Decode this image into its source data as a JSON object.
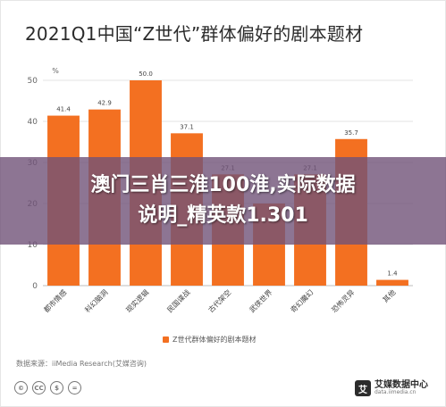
{
  "chart_data": {
    "type": "bar",
    "title": "2021Q1中国“Z世代”群体偏好的剧本题材",
    "unit": "%",
    "categories": [
      "都市情感",
      "科幻脑洞",
      "现实逻辑",
      "民国谍战",
      "古代架空",
      "武侠世界",
      "奇幻魔幻",
      "恐怖灵异",
      "其他"
    ],
    "series": [
      {
        "name": "Z世代群体偏好的剧本题材",
        "values": [
          41.4,
          42.9,
          50.0,
          37.1,
          27.1,
          20.0,
          27.1,
          35.7,
          1.4
        ],
        "value_labels": [
          "41.4",
          "42.9",
          "50.0",
          "37.1",
          "27.1",
          "",
          "27.1",
          "35.7",
          "1.4"
        ]
      }
    ],
    "ylim": [
      0,
      50
    ],
    "yticks": [
      0,
      10,
      20,
      30,
      40,
      50
    ],
    "grid": true,
    "legend_position": "bottom",
    "bar_color": "#f37021"
  },
  "source_note": "数据来源：iiMedia Research(艾媒咨询)",
  "license_icons": [
    "©",
    "CC",
    "$",
    "="
  ],
  "brand": {
    "logo": "艾",
    "name": "艾媒数据中心",
    "url": "data.iimedia.cn"
  },
  "overlay": {
    "line1": "澳门三肖三淮100淮,实际数据",
    "line2": "说明_精英款1.301"
  }
}
